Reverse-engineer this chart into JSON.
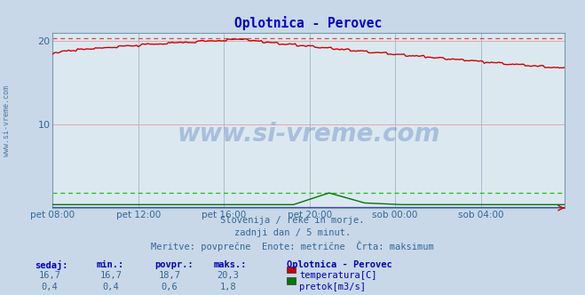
{
  "title": "Oplotnica - Perovec",
  "bg_color": "#c8d8e8",
  "plot_bg_color": "#dce8f0",
  "grid_color_h": "#c0a0a0",
  "grid_color_v": "#b0c0cc",
  "x_labels": [
    "pet 08:00",
    "pet 12:00",
    "pet 16:00",
    "pet 20:00",
    "sob 00:00",
    "sob 04:00"
  ],
  "x_ticks_pos": [
    0,
    48,
    96,
    144,
    192,
    240
  ],
  "total_points": 288,
  "ylim": [
    0,
    21
  ],
  "yticks": [
    10,
    20
  ],
  "temp_color": "#cc0000",
  "temp_max_color": "#dd4444",
  "flow_color": "#007700",
  "flow_max_color": "#22bb22",
  "height_color": "#4444cc",
  "temp_max_line": 20.3,
  "flow_max_line": 1.8,
  "subtitle_lines": [
    "Slovenija / reke in morje.",
    "zadnji dan / 5 minut.",
    "Meritve: povprečne  Enote: metrične  Črta: maksimum"
  ],
  "table_headers": [
    "sedaj:",
    "min.:",
    "povpr.:",
    "maks.:"
  ],
  "table_col1": [
    "16,7",
    "0,4"
  ],
  "table_col2": [
    "16,7",
    "0,4"
  ],
  "table_col3": [
    "18,7",
    "0,6"
  ],
  "table_col4": [
    "20,3",
    "1,8"
  ],
  "legend_title": "Oplotnica - Perovec",
  "legend_items": [
    "temperatura[C]",
    "pretok[m3/s]"
  ],
  "legend_colors": [
    "#cc0000",
    "#007700"
  ],
  "watermark": "www.si-vreme.com",
  "sidebar_text": "www.si-vreme.com"
}
